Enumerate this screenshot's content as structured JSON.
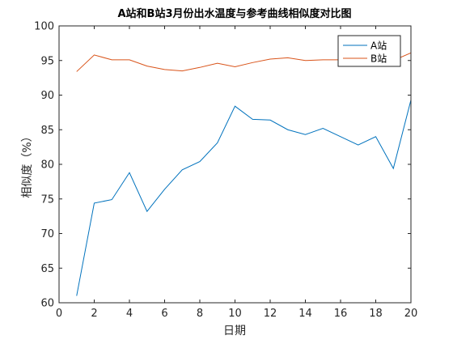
{
  "chart_data": {
    "type": "line",
    "title": "A站和B站3月份出水温度与参考曲线相似度对比图",
    "xlabel": "日期",
    "ylabel": "相似度（%）",
    "xlim": [
      0,
      20
    ],
    "ylim": [
      60,
      100
    ],
    "xticks": [
      0,
      2,
      4,
      6,
      8,
      10,
      12,
      14,
      16,
      18,
      20
    ],
    "yticks": [
      60,
      65,
      70,
      75,
      80,
      85,
      90,
      95,
      100
    ],
    "grid": false,
    "legend_position": "top-right",
    "x": [
      1,
      2,
      3,
      4,
      5,
      6,
      7,
      8,
      9,
      10,
      11,
      12,
      13,
      14,
      15,
      16,
      17,
      18,
      19,
      20
    ],
    "series": [
      {
        "name": "A站",
        "color": "#0072BD",
        "values": [
          61.0,
          74.4,
          74.9,
          78.8,
          73.2,
          76.4,
          79.2,
          80.4,
          83.1,
          88.4,
          86.5,
          86.4,
          85.0,
          84.3,
          85.2,
          84.0,
          82.8,
          84.0,
          79.4,
          89.3
        ]
      },
      {
        "name": "B站",
        "color": "#D95319",
        "values": [
          93.4,
          95.8,
          95.1,
          95.1,
          94.2,
          93.7,
          93.5,
          94.0,
          94.6,
          94.1,
          94.7,
          95.2,
          95.4,
          95.0,
          95.1,
          95.1,
          94.8,
          94.5,
          95.0,
          96.1
        ]
      }
    ]
  }
}
